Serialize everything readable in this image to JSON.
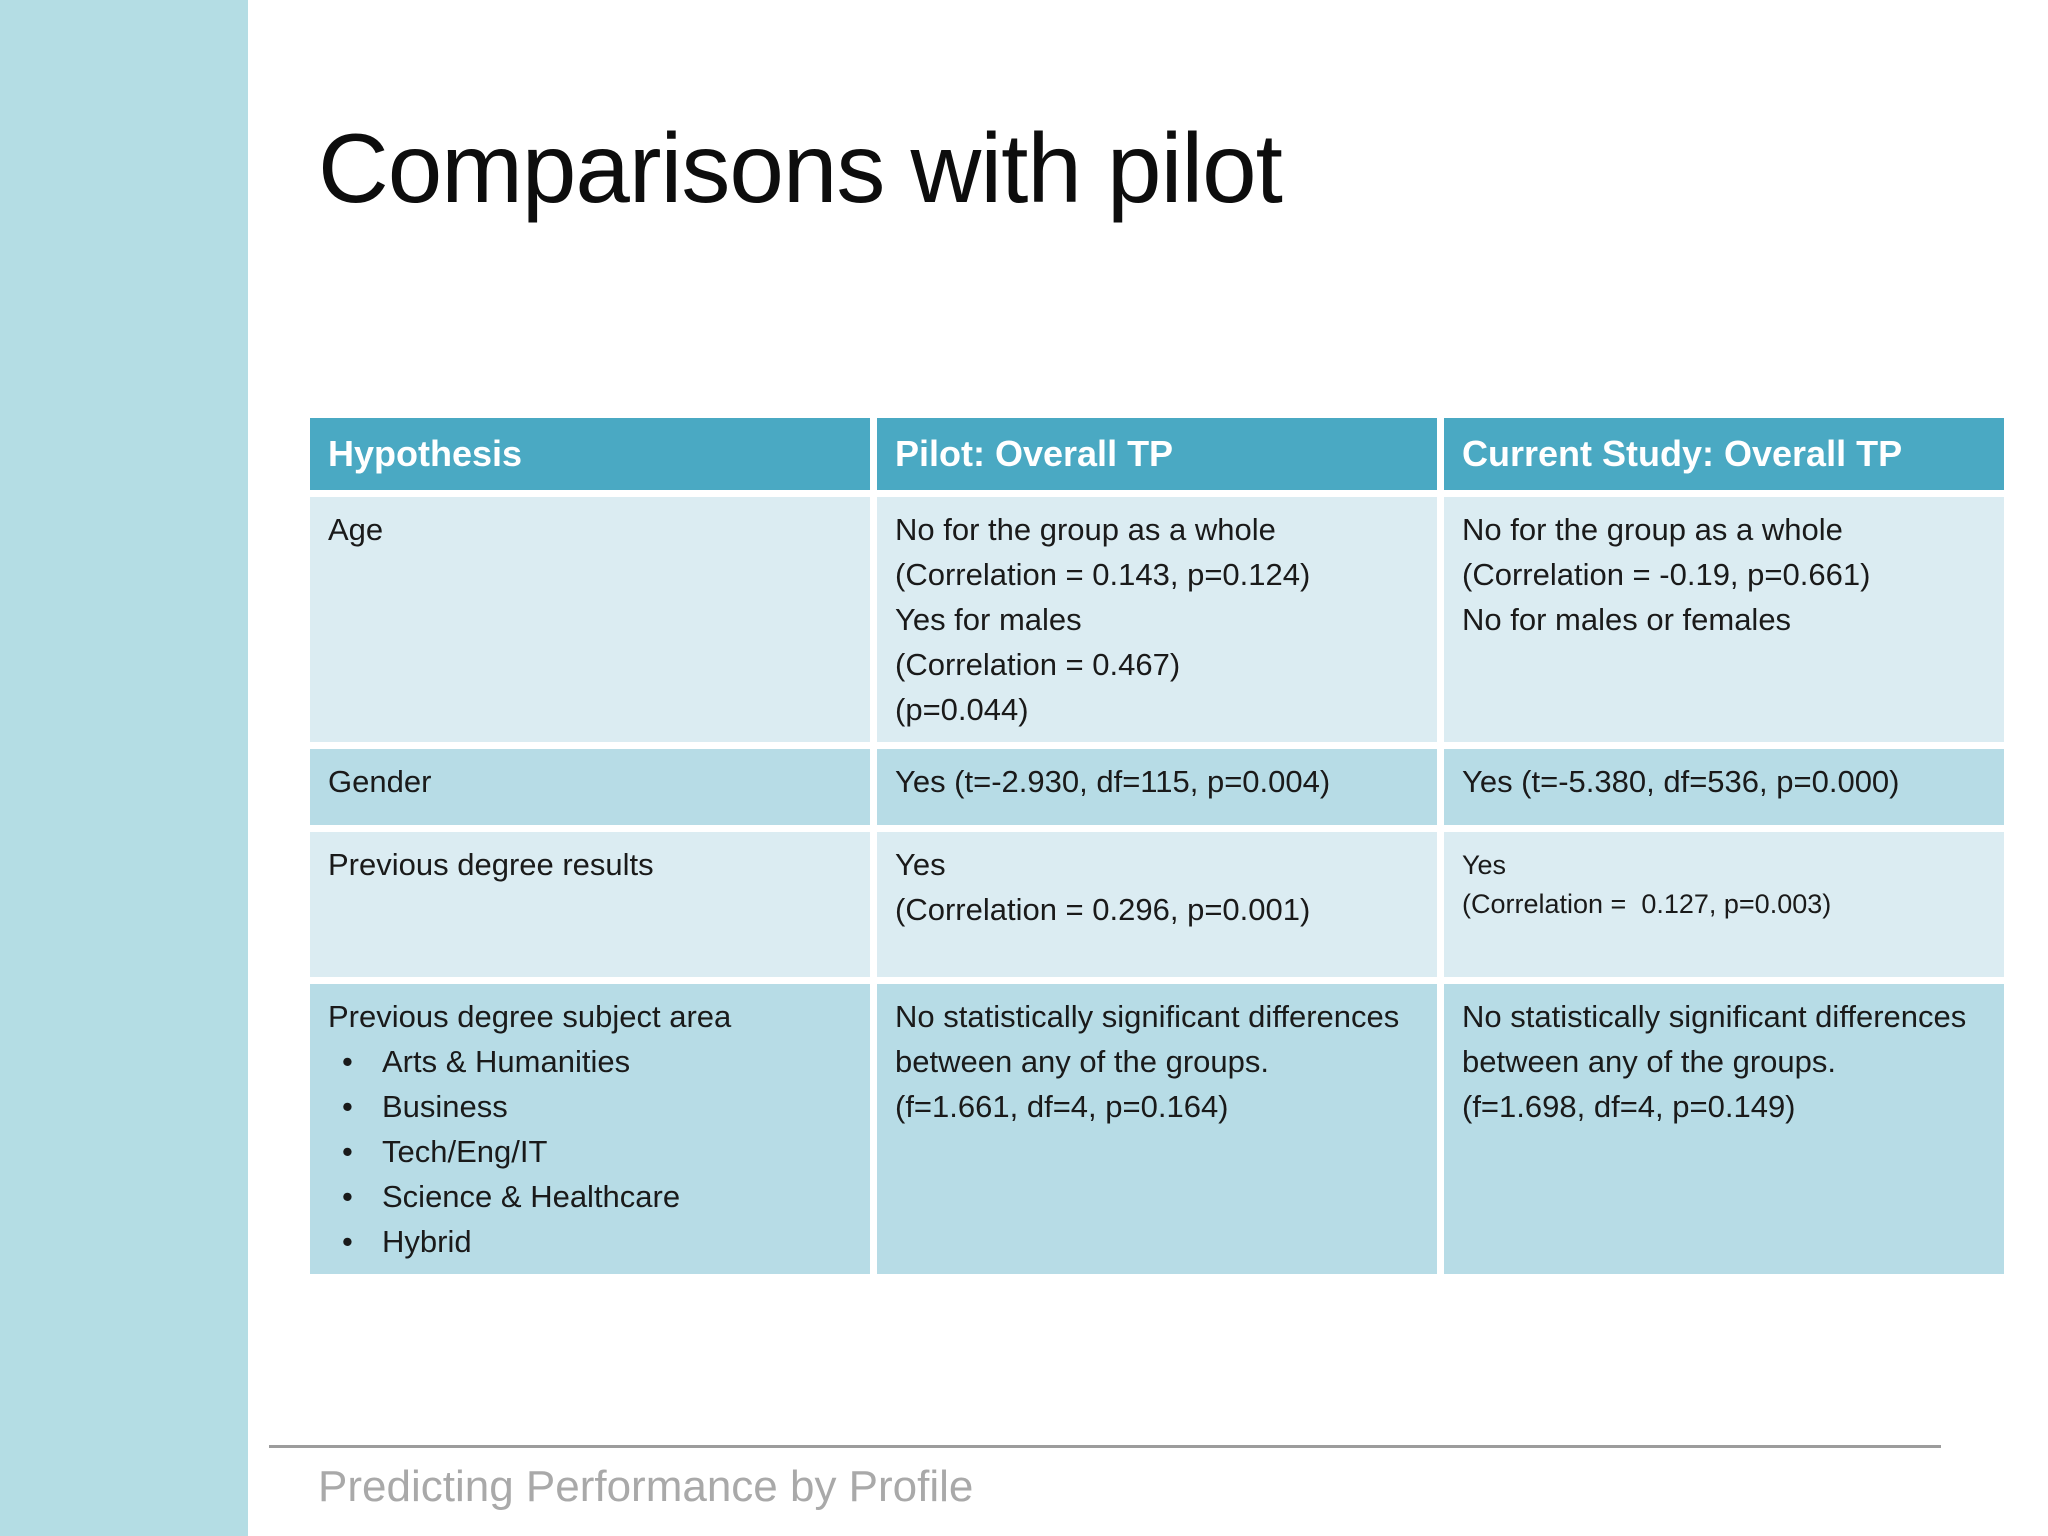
{
  "slide": {
    "title": "Comparisons with pilot",
    "footer": "Predicting Performance by Profile"
  },
  "colors": {
    "header_bg": "#4AA9C3",
    "row_light": "#DBECF2",
    "row_dark": "#B7DCE6",
    "sidebar": "#B4DDE4",
    "text_dark": "#1A1A1A",
    "footer_text": "#A9A9A9",
    "footer_line": "#9C9C9C"
  },
  "table": {
    "headers": [
      "Hypothesis",
      "Pilot: Overall TP",
      "Current Study: Overall TP"
    ],
    "rows": [
      {
        "hypothesis": "Age",
        "pilot_lines": [
          "No for the group as a whole",
          "(Correlation = 0.143, p=0.124)",
          "Yes for males",
          "(Correlation = 0.467)",
          "(p=0.044)"
        ],
        "current_lines": [
          "No for the group as a whole",
          "(Correlation = -0.19, p=0.661)",
          "No for males or females"
        ]
      },
      {
        "hypothesis": "Gender",
        "pilot_lines": [
          "Yes (t=-2.930, df=115, p=0.004)"
        ],
        "current_lines": [
          "Yes (t=-5.380, df=536, p=0.000)"
        ]
      },
      {
        "hypothesis": "Previous degree results",
        "pilot_lines": [
          "Yes",
          "(Correlation = 0.296, p=0.001)"
        ],
        "current_lines": [
          "Yes",
          "(Correlation =  0.127, p=0.003)"
        ]
      },
      {
        "hypothesis": "Previous degree subject area",
        "sub_items": [
          "Arts & Humanities",
          "Business",
          "Tech/Eng/IT",
          "Science & Healthcare",
          "Hybrid"
        ],
        "pilot_lines": [
          "No statistically significant differences",
          "between any of the groups.",
          "(f=1.661, df=4, p=0.164)"
        ],
        "current_lines": [
          "No statistically significant differences",
          "between any of the groups.",
          "(f=1.698, df=4, p=0.149)"
        ]
      }
    ]
  }
}
